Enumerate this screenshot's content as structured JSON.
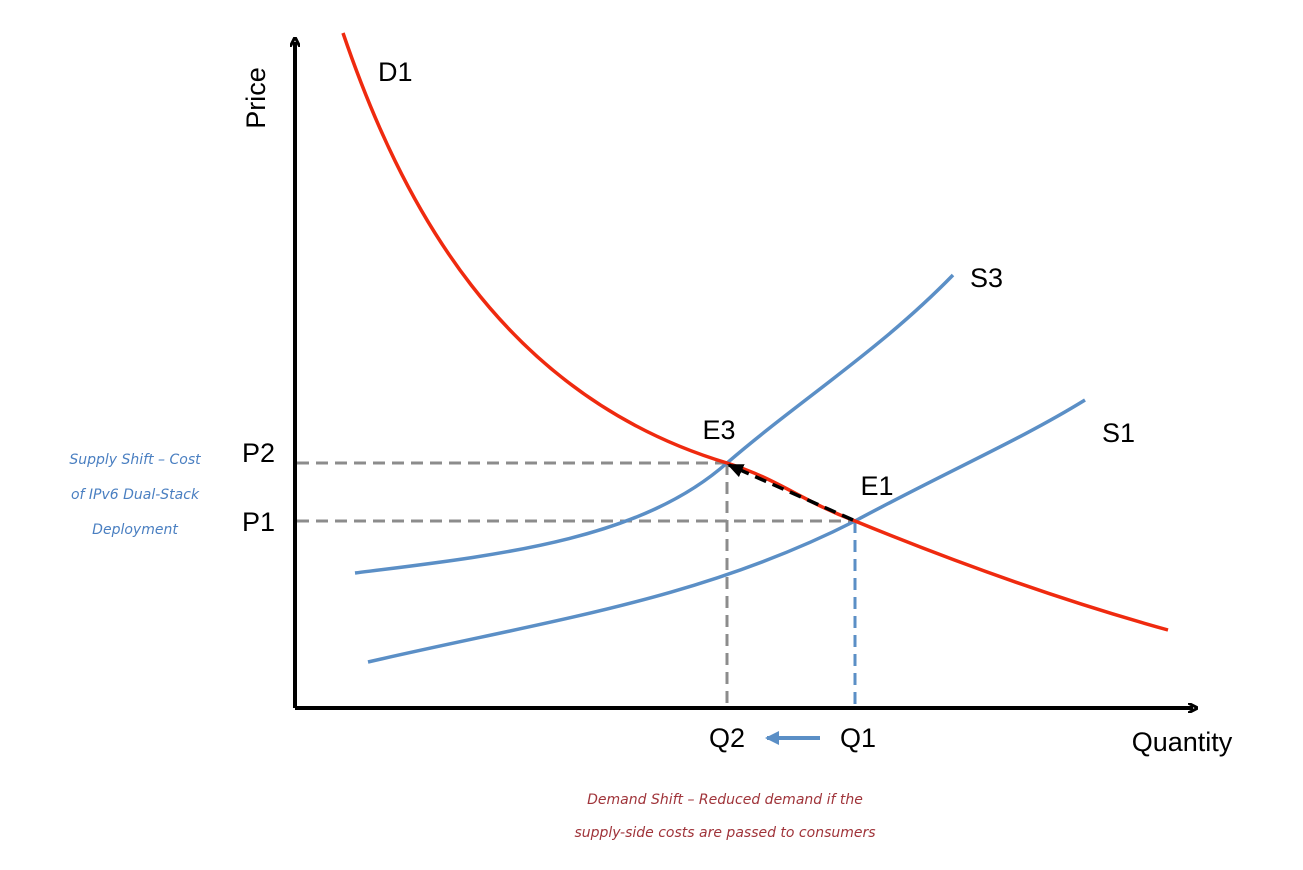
{
  "axes": {
    "x_label": "Quantity",
    "y_label": "Price"
  },
  "curves": [
    {
      "label": "D1"
    },
    {
      "label": "S3"
    },
    {
      "label": "S1"
    }
  ],
  "points": [
    {
      "label": "E3"
    },
    {
      "label": "E1"
    }
  ],
  "prices": [
    {
      "label": "P2"
    },
    {
      "label": "P1"
    }
  ],
  "quantities": [
    {
      "label": "Q2"
    },
    {
      "label": "Q1"
    }
  ],
  "annotations": {
    "supply_shift": [
      "Supply Shift – Cost",
      "of IPv6 Dual-Stack",
      "Deployment"
    ],
    "demand_shift": [
      "Demand Shift – Reduced demand if the",
      "supply-side costs are passed to consumers"
    ]
  }
}
